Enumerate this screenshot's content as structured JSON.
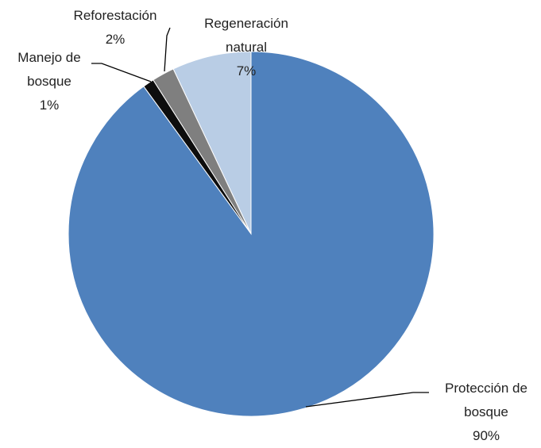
{
  "chart_data": {
    "type": "pie",
    "categories": [
      "Protección de bosque",
      "Manejo de bosque",
      "Reforestación",
      "Regeneración natural"
    ],
    "values": [
      90,
      1,
      2,
      7
    ],
    "value_labels": [
      "90%",
      "1%",
      "2%",
      "7%"
    ],
    "colors": [
      "#4f81bd",
      "#0d0d0d",
      "#7f7f7f",
      "#b9cde5"
    ]
  }
}
